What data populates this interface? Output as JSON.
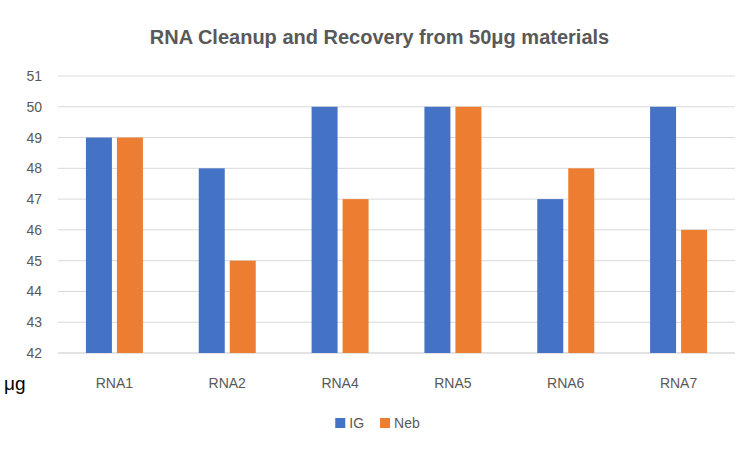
{
  "chart_data": {
    "type": "bar",
    "title": "RNA Cleanup and Recovery from 50μg materials",
    "y_label": "μg",
    "categories": [
      "RNA1",
      "RNA2",
      "RNA4",
      "RNA5",
      "RNA6",
      "RNA7"
    ],
    "series": [
      {
        "name": "IG",
        "color": "#4472c4",
        "values": [
          49,
          48,
          50,
          50,
          47,
          50
        ]
      },
      {
        "name": "Neb",
        "color": "#ed7d31",
        "values": [
          49,
          45,
          47,
          50,
          48,
          46
        ]
      }
    ],
    "ylim": [
      42,
      51
    ],
    "yticks": [
      42,
      43,
      44,
      45,
      46,
      47,
      48,
      49,
      50,
      51
    ],
    "grid": true,
    "legend": "bottom"
  }
}
